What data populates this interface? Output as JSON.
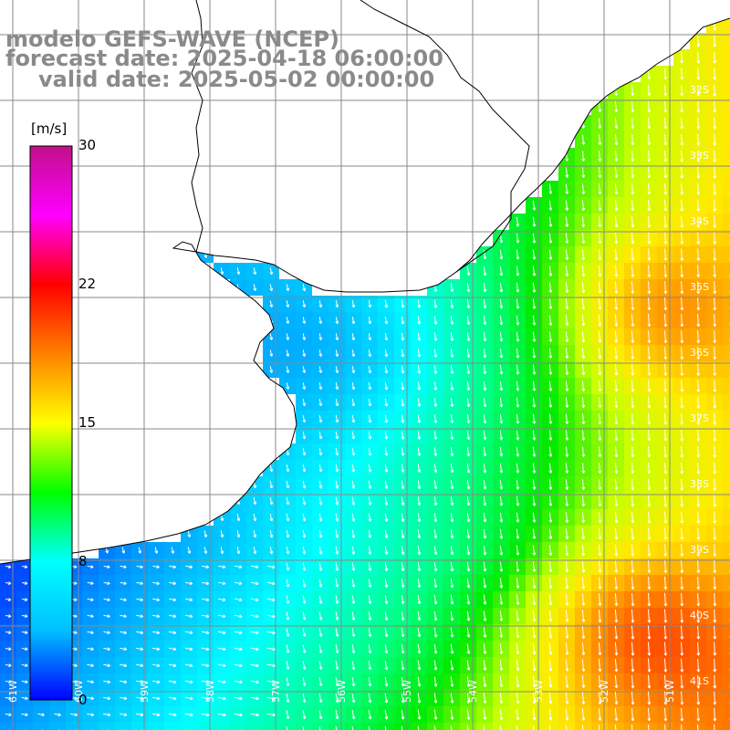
{
  "header": {
    "line1": "modelo GEFS-WAVE (NCEP)",
    "line2": "forecast date: 2025-04-18 06:00:00",
    "line3": "valid date: 2025-05-02 00:00:00"
  },
  "colorbar": {
    "unit": "[m/s]",
    "ticks": [
      "30",
      "22",
      "15",
      "8",
      "0"
    ],
    "tick_values": [
      30,
      22,
      15,
      8,
      0
    ],
    "colors": [
      "#0000ff",
      "#00bfff",
      "#00ffff",
      "#00ff00",
      "#ffff00",
      "#ff8000",
      "#ff0000",
      "#ff00ff",
      "#c0108a"
    ]
  },
  "map": {
    "lon_labels": [
      "61W",
      "60W",
      "59W",
      "58W",
      "57W",
      "56W",
      "55W",
      "54W",
      "53W",
      "52W",
      "51W"
    ],
    "lat_labels": [
      "32S",
      "33S",
      "34S",
      "35S",
      "36S",
      "37S",
      "38S",
      "39S",
      "40S",
      "41S"
    ],
    "lon_range": [
      -61.3,
      -50.3
    ],
    "lat_range": [
      -41.3,
      -30.6
    ],
    "land_color": "#ffffff",
    "grid_color": "#888888",
    "coast_color": "#000000"
  }
}
